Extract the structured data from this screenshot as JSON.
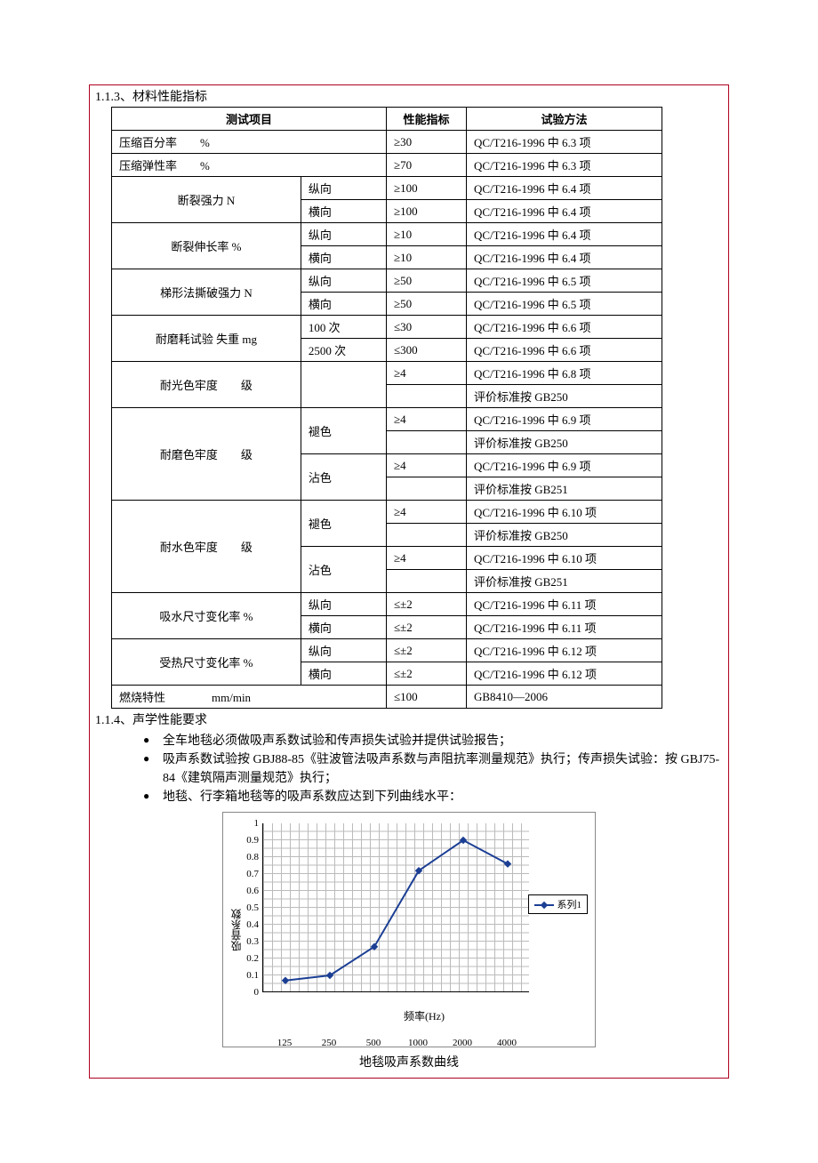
{
  "section1": {
    "title": "1.1.3、材料性能指标"
  },
  "table": {
    "headers": {
      "test": "测试项目",
      "value": "性能指标",
      "method": "试验方法"
    },
    "rows": [
      {
        "test": "压缩百分率　　%",
        "sub": null,
        "value": "≥30",
        "method": "QC/T216-1996 中 6.3 项"
      },
      {
        "test": "压缩弹性率　　%",
        "sub": null,
        "value": "≥70",
        "method": "QC/T216-1996 中 6.3 项"
      },
      {
        "test": "断裂强力 N",
        "test_rowspan": 2,
        "sub": "纵向",
        "value": "≥100",
        "method": "QC/T216-1996 中 6.4 项"
      },
      {
        "sub": "横向",
        "value": "≥100",
        "method": "QC/T216-1996 中 6.4 项"
      },
      {
        "test": "断裂伸长率  %",
        "test_rowspan": 2,
        "sub": "纵向",
        "value": "≥10",
        "method": "QC/T216-1996 中 6.4 项"
      },
      {
        "sub": "横向",
        "value": "≥10",
        "method": "QC/T216-1996 中 6.4 项"
      },
      {
        "test": "梯形法撕破强力 N",
        "test_rowspan": 2,
        "sub": "纵向",
        "value": "≥50",
        "method": "QC/T216-1996 中 6.5 项"
      },
      {
        "sub": "横向",
        "value": "≥50",
        "method": "QC/T216-1996 中 6.5 项"
      },
      {
        "test": "耐磨耗试验  失重 mg",
        "test_rowspan": 2,
        "sub": "100 次",
        "value": "≤30",
        "method": "QC/T216-1996 中 6.6 项"
      },
      {
        "sub": "2500 次",
        "value": "≤300",
        "method": "QC/T216-1996 中 6.6 项"
      },
      {
        "test": "耐光色牢度　　级",
        "test_rowspan": 2,
        "sub": null,
        "sub_rowspan": 2,
        "value": "≥4",
        "method": "QC/T216-1996 中 6.8 项"
      },
      {
        "value": "",
        "method": "评价标准按 GB250"
      },
      {
        "test": "耐磨色牢度　　级",
        "test_rowspan": 4,
        "sub": "褪色",
        "sub_rowspan": 2,
        "value": "≥4",
        "method": "QC/T216-1996 中 6.9 项"
      },
      {
        "value": "",
        "method": "评价标准按 GB250"
      },
      {
        "sub": "沾色",
        "sub_rowspan": 2,
        "value": "≥4",
        "method": "QC/T216-1996 中 6.9 项"
      },
      {
        "value": "",
        "method": "评价标准按 GB251"
      },
      {
        "test": "耐水色牢度　　级",
        "test_rowspan": 4,
        "sub": "褪色",
        "sub_rowspan": 2,
        "value": "≥4",
        "method": "QC/T216-1996 中 6.10 项"
      },
      {
        "value": "",
        "method": "评价标准按 GB250"
      },
      {
        "sub": "沾色",
        "sub_rowspan": 2,
        "value": "≥4",
        "method": "QC/T216-1996 中 6.10 项"
      },
      {
        "value": "",
        "method": "评价标准按 GB251"
      },
      {
        "test": "吸水尺寸变化率  %",
        "test_rowspan": 2,
        "sub": "纵向",
        "value": "≤±2",
        "method": "QC/T216-1996 中 6.11 项"
      },
      {
        "sub": "横向",
        "value": "≤±2",
        "method": "QC/T216-1996 中 6.11 项"
      },
      {
        "test": "受热尺寸变化率  %",
        "test_rowspan": 2,
        "sub": "纵向",
        "value": "≤±2",
        "method": "QC/T216-1996 中 6.12 项"
      },
      {
        "sub": "横向",
        "value": "≤±2",
        "method": "QC/T216-1996 中 6.12 项"
      },
      {
        "test": "燃烧特性　　　　mm/min",
        "sub": null,
        "value": "≤100",
        "method": "GB8410—2006"
      }
    ]
  },
  "section2": {
    "title": "1.1.4、声学性能要求",
    "bullets": [
      "全车地毯必须做吸声系数试验和传声损失试验并提供试验报告；",
      "吸声系数试验按 GBJ88-85《驻波管法吸声系数与声阻抗率测量规范》执行；传声损失试验：按 GBJ75-84《建筑隔声测量规范》执行；",
      "地毯、行李箱地毯等的吸声系数应达到下列曲线水平："
    ]
  },
  "chart": {
    "type": "line",
    "ylabel": "吸音系数",
    "xlabel": "频率(Hz)",
    "caption": "地毯吸声系数曲线",
    "legend": "系列1",
    "line_color": "#1c3f94",
    "grid_color": "#bbbbbb",
    "x_categories": [
      "125",
      "250",
      "500",
      "1000",
      "2000",
      "4000"
    ],
    "y_ticks": [
      "0",
      "0.1",
      "0.2",
      "0.3",
      "0.4",
      "0.5",
      "0.6",
      "0.7",
      "0.8",
      "0.9",
      "1"
    ],
    "values": [
      0.07,
      0.1,
      0.27,
      0.72,
      0.9,
      0.76
    ],
    "ylim": [
      0,
      1
    ]
  }
}
